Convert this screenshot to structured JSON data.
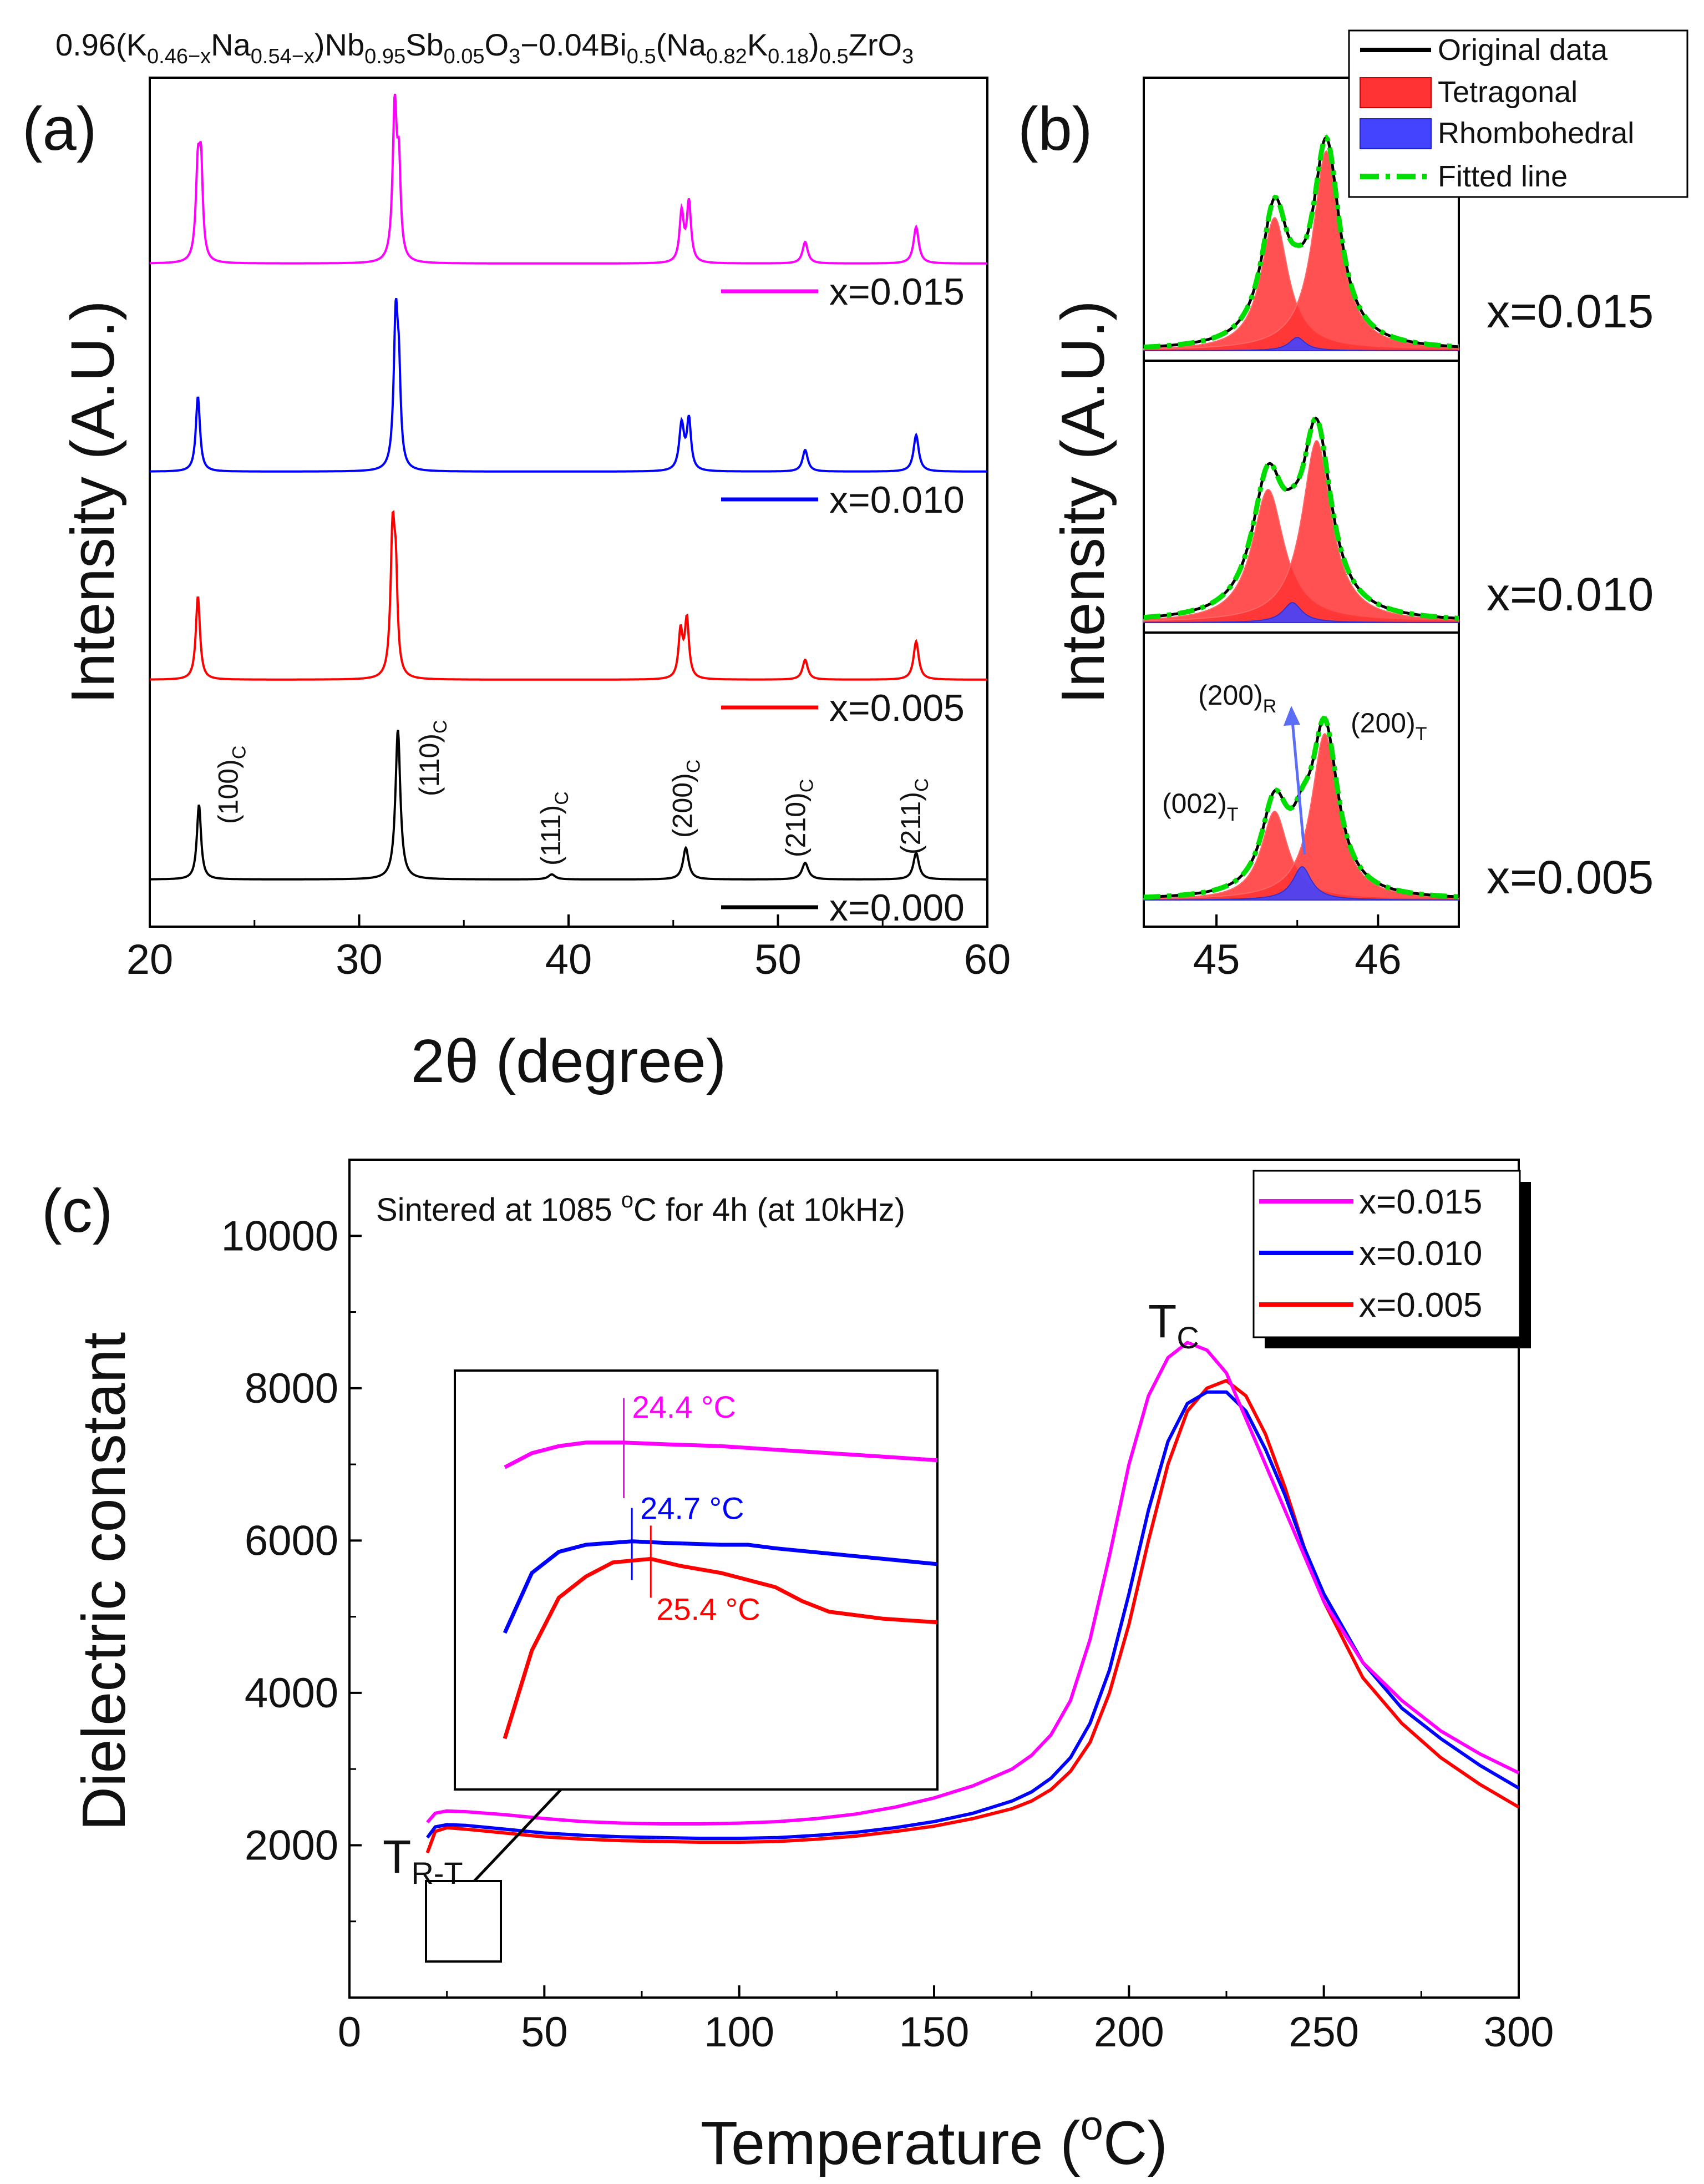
{
  "formula": {
    "main": "0.96(K",
    "sub1": "0.46−x",
    "t2": "Na",
    "sub2": "0.54−x",
    "t3": ")Nb",
    "sub3": "0.95",
    "t4": "Sb",
    "sub4": "0.05",
    "t5": "O",
    "sub5": "3",
    "t6": "−0.04Bi",
    "sub6": "0.5",
    "t7": "(Na",
    "sub7": "0.82",
    "t8": "K",
    "sub8": "0.18",
    "t9": ")",
    "sub9": "0.5",
    "t10": "ZrO",
    "sub10": "3"
  },
  "colors": {
    "magenta": "#ff00ff",
    "blue": "#0000ff",
    "red": "#ff0000",
    "black": "#000000",
    "green": "#00dd00",
    "tetragonal_fill": "#ff3333",
    "rhombohedral_fill": "#4444ff"
  },
  "chart_data": [
    {
      "id": "a",
      "panel_label": "(a)",
      "type": "line",
      "title": "",
      "xlabel": "2θ (degree)",
      "ylabel": "Intensity (A.U.)",
      "xlim": [
        20,
        60
      ],
      "xticks": [
        "20",
        "30",
        "40",
        "50",
        "60"
      ],
      "series": [
        {
          "name": "x=0.015",
          "color": "#ff00ff",
          "offset": 3,
          "peaks": [
            [
              22.3,
              0.55,
              0.12
            ],
            [
              22.45,
              0.5,
              0.1
            ],
            [
              31.7,
              0.92,
              0.12
            ],
            [
              31.9,
              0.5,
              0.1
            ],
            [
              45.4,
              0.3,
              0.12
            ],
            [
              45.75,
              0.36,
              0.12
            ],
            [
              51.3,
              0.13,
              0.15
            ],
            [
              56.6,
              0.22,
              0.15
            ]
          ]
        },
        {
          "name": "x=0.010",
          "color": "#0000ff",
          "offset": 2,
          "peaks": [
            [
              22.3,
              0.45,
              0.12
            ],
            [
              31.75,
              0.9,
              0.12
            ],
            [
              31.9,
              0.45,
              0.1
            ],
            [
              45.4,
              0.28,
              0.14
            ],
            [
              45.75,
              0.3,
              0.12
            ],
            [
              51.3,
              0.13,
              0.15
            ],
            [
              56.6,
              0.22,
              0.15
            ]
          ]
        },
        {
          "name": "x=0.005",
          "color": "#ff0000",
          "offset": 1,
          "peaks": [
            [
              22.3,
              0.5,
              0.12
            ],
            [
              31.6,
              0.85,
              0.12
            ],
            [
              31.75,
              0.5,
              0.1
            ],
            [
              45.35,
              0.28,
              0.12
            ],
            [
              45.65,
              0.35,
              0.12
            ],
            [
              51.3,
              0.12,
              0.15
            ],
            [
              56.6,
              0.23,
              0.15
            ]
          ]
        },
        {
          "name": "x=0.000",
          "color": "#000000",
          "offset": 0,
          "peaks": [
            [
              22.35,
              0.45,
              0.12
            ],
            [
              31.85,
              0.9,
              0.14
            ],
            [
              39.2,
              0.03,
              0.2
            ],
            [
              45.6,
              0.19,
              0.16
            ],
            [
              51.3,
              0.1,
              0.18
            ],
            [
              56.6,
              0.16,
              0.16
            ]
          ]
        }
      ],
      "annotations": [
        {
          "main": "(100)",
          "sub": "C",
          "x": 24.2
        },
        {
          "main": "(110)",
          "sub": "C",
          "x": 33.8
        },
        {
          "main": "(111)",
          "sub": "C",
          "x": 39.6
        },
        {
          "main": "(200)",
          "sub": "C",
          "x": 45.9
        },
        {
          "main": "(210)",
          "sub": "C",
          "x": 51.3
        },
        {
          "main": "(211)",
          "sub": "C",
          "x": 56.8
        }
      ]
    },
    {
      "id": "b",
      "panel_label": "(b)",
      "type": "area",
      "xlabel": "",
      "ylabel": "Intensity (A.U.)",
      "xlim": [
        44.55,
        46.5
      ],
      "xticks": [
        "45",
        "46"
      ],
      "subplots": [
        {
          "label": "x=0.015",
          "tetragonal": [
            [
              45.36,
              0.6,
              0.1
            ],
            [
              45.68,
              0.9,
              0.1
            ]
          ],
          "rhombohedral": [
            [
              45.5,
              0.06,
              0.06
            ]
          ]
        },
        {
          "label": "x=0.010",
          "tetragonal": [
            [
              45.32,
              0.6,
              0.12
            ],
            [
              45.62,
              0.82,
              0.11
            ]
          ],
          "rhombohedral": [
            [
              45.47,
              0.09,
              0.07
            ]
          ]
        },
        {
          "label": "x=0.005",
          "tetragonal": [
            [
              45.36,
              0.4,
              0.1
            ],
            [
              45.67,
              0.75,
              0.1
            ]
          ],
          "rhombohedral": [
            [
              45.53,
              0.15,
              0.07
            ]
          ]
        }
      ],
      "legend": [
        "Original data",
        "Tetragonal",
        "Rhombohedral",
        "Fitted line"
      ],
      "peak_labels": [
        {
          "main": "(002)",
          "sub": "T"
        },
        {
          "main": "(200)",
          "sub": "R"
        },
        {
          "main": "(200)",
          "sub": "T"
        }
      ]
    },
    {
      "id": "c",
      "panel_label": "(c)",
      "type": "line",
      "title": "Sintered at 1085 °C for 4h (at 10kHz)",
      "title_parts": {
        "before": "Sintered at 1085 ",
        "sup": "o",
        "after": "C for 4h (at 10kHz)"
      },
      "xlabel": "Temperature (°C)",
      "xlabel_parts": {
        "before": "Temperature (",
        "sup": "o",
        "after": "C)"
      },
      "ylabel": "Dielectric constant",
      "xlim": [
        0,
        300
      ],
      "ylim": [
        0,
        11000
      ],
      "xticks": [
        "0",
        "50",
        "100",
        "150",
        "200",
        "250",
        "300"
      ],
      "yticks": [
        "2000",
        "4000",
        "6000",
        "8000",
        "10000"
      ],
      "series": [
        {
          "name": "x=0.015",
          "color": "#ff00ff",
          "x": [
            20,
            22,
            25,
            30,
            40,
            50,
            60,
            70,
            80,
            90,
            100,
            110,
            120,
            130,
            140,
            150,
            160,
            170,
            175,
            180,
            185,
            190,
            195,
            200,
            205,
            210,
            215,
            220,
            225,
            230,
            235,
            240,
            245,
            250,
            260,
            270,
            280,
            290,
            300
          ],
          "y": [
            2300,
            2420,
            2450,
            2440,
            2400,
            2350,
            2310,
            2290,
            2280,
            2280,
            2290,
            2310,
            2350,
            2410,
            2500,
            2620,
            2780,
            3000,
            3180,
            3450,
            3900,
            4700,
            5800,
            7000,
            7900,
            8400,
            8600,
            8500,
            8200,
            7600,
            7000,
            6400,
            5800,
            5200,
            4400,
            3900,
            3500,
            3200,
            2950
          ]
        },
        {
          "name": "x=0.010",
          "color": "#0000ff",
          "x": [
            20,
            22,
            25,
            30,
            40,
            50,
            60,
            70,
            80,
            90,
            100,
            110,
            120,
            130,
            140,
            150,
            160,
            170,
            175,
            180,
            185,
            190,
            195,
            200,
            205,
            210,
            215,
            220,
            225,
            230,
            235,
            240,
            245,
            250,
            260,
            270,
            280,
            290,
            300
          ],
          "y": [
            2100,
            2240,
            2270,
            2260,
            2210,
            2160,
            2130,
            2110,
            2100,
            2090,
            2090,
            2100,
            2130,
            2170,
            2230,
            2310,
            2420,
            2580,
            2700,
            2880,
            3150,
            3600,
            4300,
            5300,
            6400,
            7300,
            7800,
            7950,
            7950,
            7700,
            7200,
            6600,
            5900,
            5300,
            4400,
            3800,
            3400,
            3050,
            2750
          ]
        },
        {
          "name": "x=0.005",
          "color": "#ff0000",
          "x": [
            20,
            22,
            25,
            30,
            40,
            50,
            60,
            70,
            80,
            90,
            100,
            110,
            120,
            130,
            140,
            150,
            160,
            170,
            175,
            180,
            185,
            190,
            195,
            200,
            205,
            210,
            215,
            220,
            225,
            230,
            235,
            240,
            245,
            250,
            260,
            270,
            280,
            290,
            300
          ],
          "y": [
            1900,
            2180,
            2230,
            2210,
            2160,
            2110,
            2080,
            2060,
            2050,
            2040,
            2040,
            2050,
            2080,
            2120,
            2180,
            2250,
            2350,
            2480,
            2580,
            2730,
            2970,
            3350,
            4000,
            4900,
            6000,
            7000,
            7700,
            8000,
            8100,
            7900,
            7400,
            6700,
            5900,
            5200,
            4200,
            3600,
            3150,
            2800,
            2500
          ]
        }
      ],
      "annotations": {
        "tc": {
          "main": "T",
          "sub": "C"
        },
        "trt": {
          "main": "T",
          "sub": "R-T"
        }
      },
      "inset": {
        "xlim": [
          20,
          36
        ],
        "series": [
          {
            "color": "#ff00ff",
            "x": [
              20,
              21,
              22,
              23,
              24.4,
              26,
              28,
              30,
              32,
              34,
              36
            ],
            "y": [
              0.82,
              0.86,
              0.88,
              0.89,
              0.89,
              0.885,
              0.88,
              0.87,
              0.86,
              0.85,
              0.84
            ],
            "peak": 24.4,
            "label": "24.4 °C"
          },
          {
            "color": "#0000ff",
            "x": [
              20,
              21,
              22,
              23,
              24.7,
              26,
              28,
              29,
              30,
              32,
              34,
              36
            ],
            "y": [
              0.35,
              0.52,
              0.58,
              0.6,
              0.61,
              0.605,
              0.6,
              0.6,
              0.59,
              0.575,
              0.56,
              0.545
            ],
            "peak": 24.7,
            "label": "24.7 °C"
          },
          {
            "color": "#ff0000",
            "x": [
              20,
              21,
              22,
              23,
              24,
              25.4,
              26.5,
              28,
              30,
              31,
              32,
              33,
              34,
              36
            ],
            "y": [
              0.05,
              0.3,
              0.45,
              0.51,
              0.55,
              0.56,
              0.54,
              0.52,
              0.48,
              0.44,
              0.41,
              0.4,
              0.39,
              0.38
            ],
            "peak": 25.4,
            "label": "25.4 °C"
          }
        ]
      }
    }
  ]
}
